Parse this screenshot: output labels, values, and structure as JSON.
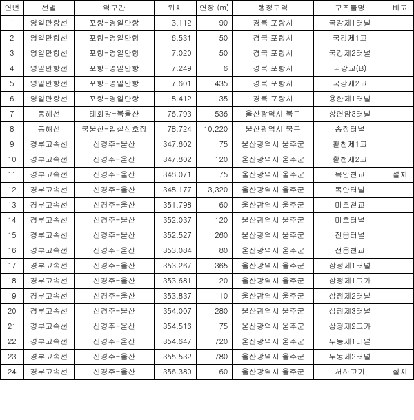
{
  "table": {
    "columns": [
      "연번",
      "선별",
      "역구간",
      "위치",
      "연장 (m)",
      "행정구역",
      "구조물명",
      "비고"
    ],
    "rows": [
      [
        "1",
        "영일만항선",
        "포항-영일만항",
        "3.112",
        "190",
        "경북 포항시",
        "국강제1터널",
        ""
      ],
      [
        "2",
        "영일만항선",
        "포항-영일만항",
        "6.531",
        "50",
        "경북 포항시",
        "국강제1교",
        ""
      ],
      [
        "3",
        "영일만항선",
        "포항-영일만항",
        "7.020",
        "50",
        "경북 포항시",
        "국강제2터널",
        ""
      ],
      [
        "4",
        "영일만항선",
        "포항-영일만항",
        "7.249",
        "6",
        "경북 포항시",
        "국강교(B)",
        ""
      ],
      [
        "5",
        "영일만항선",
        "포항-영일만항",
        "7.601",
        "435",
        "경북 포항시",
        "국강제2교",
        ""
      ],
      [
        "6",
        "영일만항선",
        "포항-영일만항",
        "8.412",
        "135",
        "경북 포항시",
        "용한제1터널",
        ""
      ],
      [
        "7",
        "동해선",
        "태화강-북울산",
        "76.793",
        "536",
        "울산광역시 북구",
        "상연암3터널",
        ""
      ],
      [
        "8",
        "동해선",
        "북울산-입실신호장",
        "78.724",
        "10,220",
        "울산광역시 북구",
        "송정터널",
        ""
      ],
      [
        "9",
        "경부고속선",
        "신경주-울산",
        "347.602",
        "75",
        "울산광역시 울주군",
        "활천제1교",
        ""
      ],
      [
        "10",
        "경부고속선",
        "신경주-울산",
        "347.802",
        "120",
        "울산광역시 울주군",
        "활천제2교",
        ""
      ],
      [
        "11",
        "경부고속선",
        "신경주-울산",
        "348.071",
        "75",
        "울산광역시 울주군",
        "목안천교",
        "설치"
      ],
      [
        "12",
        "경부고속선",
        "신경주-울산",
        "348.177",
        "3,320",
        "울산광역시 울주군",
        "목안터널",
        ""
      ],
      [
        "13",
        "경부고속선",
        "신경주-울산",
        "351.798",
        "160",
        "울산광역시 울주군",
        "미호천교",
        ""
      ],
      [
        "14",
        "경부고속선",
        "신경주-울산",
        "352.037",
        "120",
        "울산광역시 울주군",
        "미호터널",
        ""
      ],
      [
        "15",
        "경부고속선",
        "신경주-울산",
        "352.527",
        "260",
        "울산광역시 울주군",
        "전읍터널",
        ""
      ],
      [
        "16",
        "경부고속선",
        "신경주-울산",
        "353.084",
        "80",
        "울산광역시 울주군",
        "전읍천교",
        ""
      ],
      [
        "17",
        "경부고속선",
        "신경주-울산",
        "353.267",
        "365",
        "울산광역시 울주군",
        "삼정제1터널",
        ""
      ],
      [
        "18",
        "경부고속선",
        "신경주-울산",
        "353.681",
        "120",
        "울산광역시 울주군",
        "삼정제1고가",
        ""
      ],
      [
        "19",
        "경부고속선",
        "신경주-울산",
        "353.837",
        "110",
        "울산광역시 울주군",
        "삼정제2터널",
        ""
      ],
      [
        "20",
        "경부고속선",
        "신경주-울산",
        "354.007",
        "280",
        "울산광역시 울주군",
        "삼정제3터널",
        ""
      ],
      [
        "21",
        "경부고속선",
        "신경주-울산",
        "354.516",
        "75",
        "울산광역시 울주군",
        "삼정제2고가",
        ""
      ],
      [
        "22",
        "경부고속선",
        "신경주-울산",
        "354.647",
        "720",
        "울산광역시 울주군",
        "두동제1터널",
        ""
      ],
      [
        "23",
        "경부고속선",
        "신경주-울산",
        "355.532",
        "780",
        "울산광역시 울주군",
        "두동제2터널",
        ""
      ],
      [
        "24",
        "경부고속선",
        "신경주-울산",
        "356.380",
        "160",
        "울산광역시 울주군",
        "서하고가",
        "설치"
      ]
    ]
  }
}
